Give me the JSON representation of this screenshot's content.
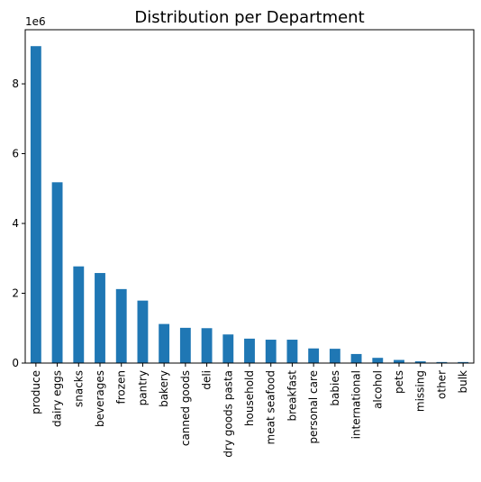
{
  "chart_data": {
    "type": "bar",
    "title": "Distribution per Department",
    "xlabel": "",
    "ylabel": "",
    "y_multiplier_label": "1e6",
    "ylim": [
      0,
      9.55
    ],
    "yticks": [
      "0",
      "2",
      "4",
      "6",
      "8"
    ],
    "grid": false,
    "legend": "none",
    "bar_color": "#1f77b4",
    "categories": [
      "produce",
      "dairy eggs",
      "snacks",
      "beverages",
      "frozen",
      "pantry",
      "bakery",
      "canned goods",
      "deli",
      "dry goods pasta",
      "household",
      "meat seafood",
      "breakfast",
      "personal care",
      "babies",
      "international",
      "alcohol",
      "pets",
      "missing",
      "other",
      "bulk"
    ],
    "values": [
      9.08,
      5.18,
      2.77,
      2.58,
      2.12,
      1.79,
      1.12,
      1.01,
      1.0,
      0.82,
      0.7,
      0.67,
      0.67,
      0.42,
      0.41,
      0.26,
      0.15,
      0.09,
      0.05,
      0.03,
      0.03
    ]
  }
}
